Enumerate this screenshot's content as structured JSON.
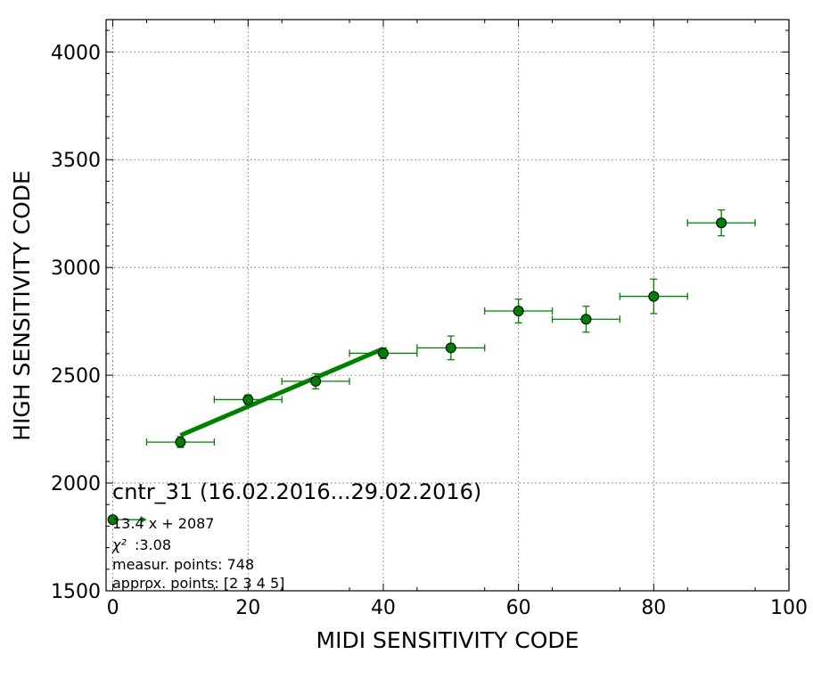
{
  "chart_data": {
    "type": "scatter",
    "xlabel": "MIDI SENSITIVITY CODE",
    "ylabel": "HIGH SENSITIVITY CODE",
    "xlim": [
      -1,
      100
    ],
    "ylim": [
      1500,
      4150
    ],
    "grid": true,
    "x_ticks": [
      0,
      20,
      40,
      60,
      80,
      100
    ],
    "y_ticks": [
      1500,
      2000,
      2500,
      3000,
      3500,
      4000
    ],
    "x_tick_labels": [
      "0",
      "20",
      "40",
      "60",
      "80",
      "100"
    ],
    "y_tick_labels": [
      "1500",
      "2000",
      "2500",
      "3000",
      "3500",
      "4000"
    ],
    "colors": {
      "series": "#008000",
      "fit": "#008000"
    },
    "series": [
      {
        "points": [
          {
            "x": 10,
            "y": 2190,
            "xerr": 5,
            "yerr": 25
          },
          {
            "x": 20,
            "y": 2387,
            "xerr": 5,
            "yerr": 22
          },
          {
            "x": 30,
            "y": 2472,
            "xerr": 5,
            "yerr": 35
          },
          {
            "x": 40,
            "y": 2602,
            "xerr": 5,
            "yerr": 25
          },
          {
            "x": 50,
            "y": 2627,
            "xerr": 5,
            "yerr": 55
          },
          {
            "x": 60,
            "y": 2798,
            "xerr": 5,
            "yerr": 55
          },
          {
            "x": 70,
            "y": 2760,
            "xerr": 5,
            "yerr": 60
          },
          {
            "x": 80,
            "y": 2866,
            "xerr": 5,
            "yerr": 80
          },
          {
            "x": 90,
            "y": 3207,
            "xerr": 5,
            "yerr": 60
          }
        ]
      }
    ],
    "fit": {
      "slope": 13.4,
      "intercept": 2087,
      "x_range": [
        10,
        40
      ]
    },
    "legend_marker": {
      "x": 0,
      "y": 1830
    },
    "annotations": {
      "title": "cntr_31 (16.02.2016...29.02.2016)",
      "equation": "13.4 x + 2087",
      "chi2_label": "χ²",
      "chi2_value": ":3.08",
      "measur_points": "measur. points: 748",
      "approx_points": "approx. points: [2 3 4 5]"
    }
  }
}
